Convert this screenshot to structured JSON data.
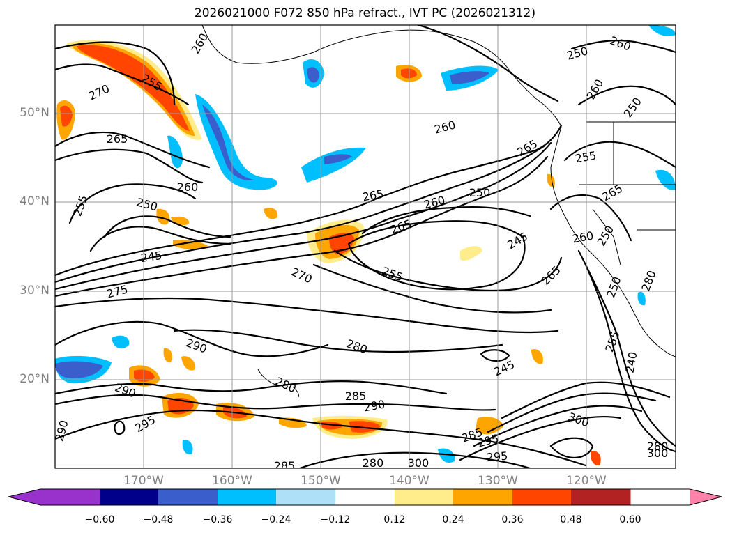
{
  "title": "2026021000 F072 850 hPa refract., IVT PC (2026021312)",
  "lat_labels": [
    "50°N",
    "40°N",
    "30°N",
    "20°N"
  ],
  "lon_labels": [
    "170°W",
    "160°W",
    "150°W",
    "140°W",
    "130°W",
    "120°W"
  ],
  "colorbar": {
    "ticks": [
      "−0.60",
      "−0.48",
      "−0.36",
      "−0.24",
      "−0.12",
      "0.12",
      "0.24",
      "0.36",
      "0.48",
      "0.60"
    ],
    "colors": [
      "#9932cc",
      "#00008b",
      "#3a5fcd",
      "#00bfff",
      "#aee1f8",
      "#ffffff",
      "#ffec8b",
      "#ffa500",
      "#ff4500",
      "#b22222",
      "#ff82ab"
    ]
  },
  "contour_labels": [
    "260",
    "255",
    "270",
    "265",
    "260",
    "250",
    "245",
    "275",
    "290",
    "290",
    "290",
    "295",
    "280",
    "285",
    "290",
    "285",
    "280",
    "300",
    "295",
    "285",
    "295",
    "300",
    "255",
    "260",
    "250",
    "260",
    "265",
    "255",
    "265",
    "260",
    "265",
    "265",
    "250",
    "245",
    "245",
    "255",
    "270",
    "250",
    "260",
    "250",
    "280",
    "255",
    "265",
    "240",
    "280",
    "300",
    "260",
    "250",
    "280"
  ]
}
